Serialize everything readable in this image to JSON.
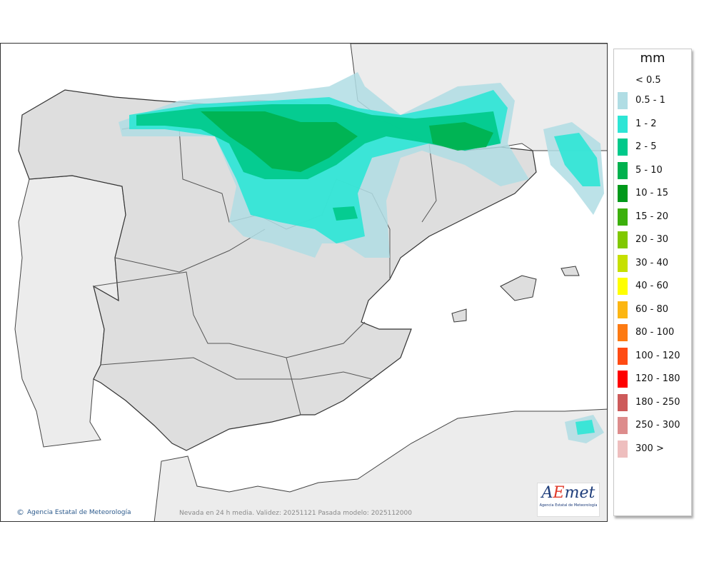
{
  "legend": {
    "unit": "mm",
    "items": [
      {
        "label": "< 0.5",
        "color": "#ffffff"
      },
      {
        "label": "0.5 - 1",
        "color": "#b0dde4"
      },
      {
        "label": "1 - 2",
        "color": "#2de5d5"
      },
      {
        "label": "2 - 5",
        "color": "#00c98a"
      },
      {
        "label": "5 - 10",
        "color": "#00b14e"
      },
      {
        "label": "10 - 15",
        "color": "#00991a"
      },
      {
        "label": "15 - 20",
        "color": "#3cb00c"
      },
      {
        "label": "20 - 30",
        "color": "#80c800"
      },
      {
        "label": "30 - 40",
        "color": "#c6e000"
      },
      {
        "label": "40 - 60",
        "color": "#ffff00"
      },
      {
        "label": "60 - 80",
        "color": "#fcb612"
      },
      {
        "label": "80 - 100",
        "color": "#fd7a12"
      },
      {
        "label": "100 - 120",
        "color": "#ff4b13"
      },
      {
        "label": "120 - 180",
        "color": "#fe0000"
      },
      {
        "label": "180 - 250",
        "color": "#cd5a5a"
      },
      {
        "label": "250 - 300",
        "color": "#dd8c8c"
      },
      {
        "label": "300 >",
        "color": "#eebebe"
      }
    ]
  },
  "map": {
    "credit": "Agencia Estatal de Meteorología",
    "caption": "Nevada en 24 h media. Validez: 20251121 Pasada modelo: 2025112000",
    "logo_text": "AEmet",
    "logo_sub": "Agencia Estatal de Meteorología"
  }
}
